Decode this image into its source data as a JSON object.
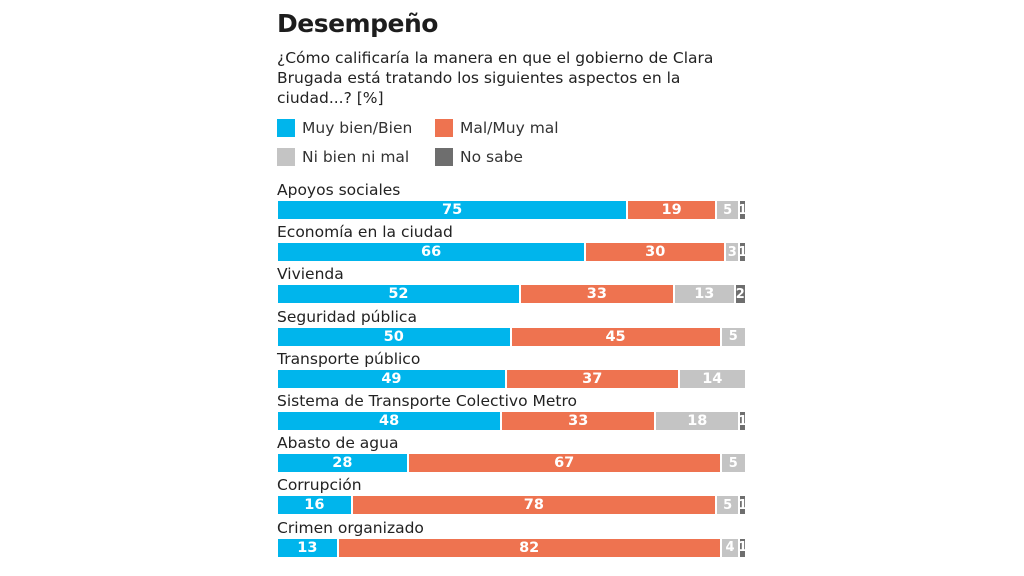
{
  "header": {
    "title": "Desempeño",
    "question": "¿Cómo calificaría la manera en que el gobierno de Clara Brugada está tratando los siguientes aspectos en la ciudad...? [%]"
  },
  "colors": {
    "muy_bien_bien": "#00b5ec",
    "mal_muy_mal": "#ee7350",
    "ni_bien_ni_mal": "#c4c4c4",
    "no_sabe": "#6e6e6e"
  },
  "chart_data": {
    "type": "bar",
    "orientation": "horizontal",
    "stacked": true,
    "title": "Desempeño",
    "subtitle": "¿Cómo calificaría la manera en que el gobierno de Clara Brugada está tratando los siguientes aspectos en la ciudad...? [%]",
    "xlabel": "",
    "ylabel": "",
    "xlim": [
      0,
      100
    ],
    "grid": false,
    "legend_position": "top-left",
    "categories": [
      "Apoyos sociales",
      "Economía en la ciudad",
      "Vivienda",
      "Seguridad pública",
      "Transporte público",
      "Sistema de Transporte Colectivo Metro",
      "Abasto de agua",
      "Corrupción",
      "Crimen organizado"
    ],
    "series": [
      {
        "name": "Muy bien/Bien",
        "color": "#00b5ec",
        "values": [
          75,
          66,
          52,
          50,
          49,
          48,
          28,
          16,
          13
        ]
      },
      {
        "name": "Mal/Muy mal",
        "color": "#ee7350",
        "values": [
          19,
          30,
          33,
          45,
          37,
          33,
          67,
          78,
          82
        ]
      },
      {
        "name": "Ni bien ni mal",
        "color": "#c4c4c4",
        "values": [
          5,
          3,
          13,
          5,
          14,
          18,
          5,
          5,
          4
        ]
      },
      {
        "name": "No sabe",
        "color": "#6e6e6e",
        "values": [
          1,
          1,
          2,
          0,
          0,
          1,
          0,
          1,
          1
        ]
      }
    ]
  }
}
